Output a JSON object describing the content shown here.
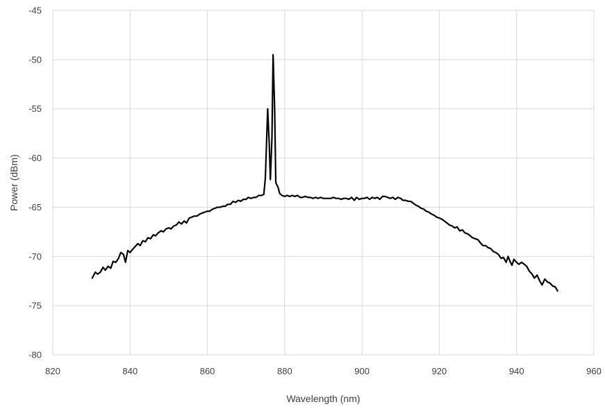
{
  "chart_data": {
    "type": "line",
    "title": "",
    "xlabel": "Wavelength (nm)",
    "ylabel": "Power (dBm)",
    "xlim": [
      820,
      960
    ],
    "ylim": [
      -80,
      -45
    ],
    "xticks": [
      820,
      840,
      860,
      880,
      900,
      920,
      940,
      960
    ],
    "yticks": [
      -45,
      -50,
      -55,
      -60,
      -65,
      -70,
      -75,
      -80
    ],
    "grid": true,
    "legend": "none",
    "colors": {
      "series": "#000000",
      "grid": "#d9d9d9",
      "text": "#404040"
    },
    "series": [
      {
        "points": [
          [
            830.2,
            -72.2
          ],
          [
            831.0,
            -71.6
          ],
          [
            831.6,
            -71.8
          ],
          [
            832.3,
            -71.6
          ],
          [
            833.0,
            -71.1
          ],
          [
            833.6,
            -71.4
          ],
          [
            834.3,
            -71.0
          ],
          [
            835.0,
            -71.2
          ],
          [
            835.6,
            -70.5
          ],
          [
            836.3,
            -70.6
          ],
          [
            837.0,
            -70.2
          ],
          [
            837.6,
            -69.6
          ],
          [
            838.3,
            -69.8
          ],
          [
            838.8,
            -70.6
          ],
          [
            839.4,
            -69.4
          ],
          [
            840.0,
            -69.6
          ],
          [
            840.6,
            -69.3
          ],
          [
            841.3,
            -69.0
          ],
          [
            842.0,
            -68.7
          ],
          [
            842.6,
            -68.9
          ],
          [
            843.3,
            -68.4
          ],
          [
            844.0,
            -68.5
          ],
          [
            844.6,
            -68.1
          ],
          [
            845.3,
            -68.2
          ],
          [
            846.0,
            -67.8
          ],
          [
            846.6,
            -67.9
          ],
          [
            847.3,
            -67.6
          ],
          [
            848.0,
            -67.4
          ],
          [
            848.6,
            -67.5
          ],
          [
            849.3,
            -67.2
          ],
          [
            850.0,
            -67.1
          ],
          [
            850.6,
            -67.2
          ],
          [
            851.3,
            -66.9
          ],
          [
            852.0,
            -66.8
          ],
          [
            852.6,
            -66.5
          ],
          [
            853.3,
            -66.7
          ],
          [
            854.0,
            -66.4
          ],
          [
            854.6,
            -66.6
          ],
          [
            855.3,
            -66.1
          ],
          [
            856.0,
            -66.0
          ],
          [
            856.6,
            -65.9
          ],
          [
            857.3,
            -65.9
          ],
          [
            858.0,
            -65.7
          ],
          [
            858.6,
            -65.6
          ],
          [
            859.3,
            -65.5
          ],
          [
            860.0,
            -65.4
          ],
          [
            860.6,
            -65.4
          ],
          [
            861.3,
            -65.2
          ],
          [
            862.0,
            -65.1
          ],
          [
            862.6,
            -65.0
          ],
          [
            863.3,
            -65.0
          ],
          [
            864.0,
            -64.9
          ],
          [
            864.6,
            -64.9
          ],
          [
            865.3,
            -64.7
          ],
          [
            866.0,
            -64.7
          ],
          [
            866.6,
            -64.4
          ],
          [
            867.3,
            -64.5
          ],
          [
            868.0,
            -64.3
          ],
          [
            868.6,
            -64.4
          ],
          [
            869.3,
            -64.2
          ],
          [
            870.0,
            -64.2
          ],
          [
            870.6,
            -64.0
          ],
          [
            871.3,
            -64.1
          ],
          [
            872.0,
            -64.0
          ],
          [
            872.6,
            -64.0
          ],
          [
            873.3,
            -63.8
          ],
          [
            874.0,
            -63.8
          ],
          [
            874.6,
            -63.7
          ],
          [
            875.0,
            -62.0
          ],
          [
            875.6,
            -55.0
          ],
          [
            876.0,
            -58.5
          ],
          [
            876.3,
            -62.2
          ],
          [
            876.7,
            -58.0
          ],
          [
            877.0,
            -49.5
          ],
          [
            877.4,
            -55.0
          ],
          [
            877.7,
            -62.5
          ],
          [
            878.3,
            -63.0
          ],
          [
            878.7,
            -63.6
          ],
          [
            879.3,
            -63.8
          ],
          [
            880.0,
            -63.9
          ],
          [
            880.6,
            -63.8
          ],
          [
            881.3,
            -63.9
          ],
          [
            882.0,
            -63.8
          ],
          [
            882.6,
            -63.9
          ],
          [
            883.3,
            -63.8
          ],
          [
            884.0,
            -64.0
          ],
          [
            884.6,
            -64.0
          ],
          [
            885.3,
            -63.9
          ],
          [
            886.0,
            -64.0
          ],
          [
            886.6,
            -64.0
          ],
          [
            887.3,
            -64.1
          ],
          [
            888.0,
            -64.0
          ],
          [
            888.6,
            -64.1
          ],
          [
            889.3,
            -64.0
          ],
          [
            890.0,
            -64.1
          ],
          [
            890.6,
            -64.1
          ],
          [
            891.3,
            -64.1
          ],
          [
            892.0,
            -64.1
          ],
          [
            892.6,
            -64.0
          ],
          [
            893.3,
            -64.1
          ],
          [
            894.0,
            -64.1
          ],
          [
            894.6,
            -64.2
          ],
          [
            895.3,
            -64.1
          ],
          [
            896.0,
            -64.1
          ],
          [
            896.6,
            -64.2
          ],
          [
            897.3,
            -64.0
          ],
          [
            898.0,
            -64.3
          ],
          [
            898.6,
            -64.0
          ],
          [
            899.3,
            -64.2
          ],
          [
            900.0,
            -64.1
          ],
          [
            900.6,
            -64.1
          ],
          [
            901.3,
            -64.0
          ],
          [
            902.0,
            -64.2
          ],
          [
            902.6,
            -64.0
          ],
          [
            903.3,
            -64.1
          ],
          [
            904.0,
            -64.0
          ],
          [
            904.6,
            -64.2
          ],
          [
            905.3,
            -63.9
          ],
          [
            906.0,
            -63.9
          ],
          [
            906.6,
            -64.0
          ],
          [
            907.3,
            -64.1
          ],
          [
            908.0,
            -64.0
          ],
          [
            908.6,
            -64.2
          ],
          [
            909.3,
            -64.0
          ],
          [
            910.0,
            -64.1
          ],
          [
            910.6,
            -64.3
          ],
          [
            911.3,
            -64.3
          ],
          [
            912.0,
            -64.4
          ],
          [
            912.6,
            -64.4
          ],
          [
            913.3,
            -64.6
          ],
          [
            914.0,
            -64.8
          ],
          [
            914.6,
            -64.9
          ],
          [
            915.3,
            -65.1
          ],
          [
            916.0,
            -65.2
          ],
          [
            916.6,
            -65.4
          ],
          [
            917.3,
            -65.5
          ],
          [
            918.0,
            -65.7
          ],
          [
            918.6,
            -65.8
          ],
          [
            919.3,
            -66.0
          ],
          [
            920.0,
            -66.1
          ],
          [
            920.6,
            -66.2
          ],
          [
            921.3,
            -66.4
          ],
          [
            922.0,
            -66.6
          ],
          [
            922.6,
            -66.8
          ],
          [
            923.3,
            -66.9
          ],
          [
            924.0,
            -67.1
          ],
          [
            924.6,
            -67.0
          ],
          [
            925.3,
            -67.4
          ],
          [
            926.0,
            -67.3
          ],
          [
            926.6,
            -67.6
          ],
          [
            927.3,
            -67.7
          ],
          [
            928.0,
            -67.9
          ],
          [
            928.6,
            -68.1
          ],
          [
            929.3,
            -68.2
          ],
          [
            930.0,
            -68.3
          ],
          [
            930.6,
            -68.6
          ],
          [
            931.3,
            -68.9
          ],
          [
            932.0,
            -68.9
          ],
          [
            932.6,
            -69.1
          ],
          [
            933.3,
            -69.2
          ],
          [
            934.0,
            -69.5
          ],
          [
            934.6,
            -69.6
          ],
          [
            935.3,
            -69.8
          ],
          [
            936.0,
            -70.2
          ],
          [
            936.6,
            -70.1
          ],
          [
            937.3,
            -70.6
          ],
          [
            937.8,
            -70.0
          ],
          [
            938.3,
            -70.5
          ],
          [
            938.8,
            -70.9
          ],
          [
            939.3,
            -70.3
          ],
          [
            940.0,
            -70.6
          ],
          [
            940.6,
            -70.8
          ],
          [
            941.3,
            -70.6
          ],
          [
            942.0,
            -70.8
          ],
          [
            942.6,
            -71.0
          ],
          [
            943.3,
            -71.5
          ],
          [
            944.0,
            -71.8
          ],
          [
            944.6,
            -72.2
          ],
          [
            945.3,
            -71.9
          ],
          [
            946.0,
            -72.5
          ],
          [
            946.6,
            -72.9
          ],
          [
            947.3,
            -72.3
          ],
          [
            948.0,
            -72.6
          ],
          [
            948.6,
            -72.7
          ],
          [
            949.3,
            -73.0
          ],
          [
            950.0,
            -73.1
          ],
          [
            950.6,
            -73.5
          ]
        ]
      }
    ]
  }
}
